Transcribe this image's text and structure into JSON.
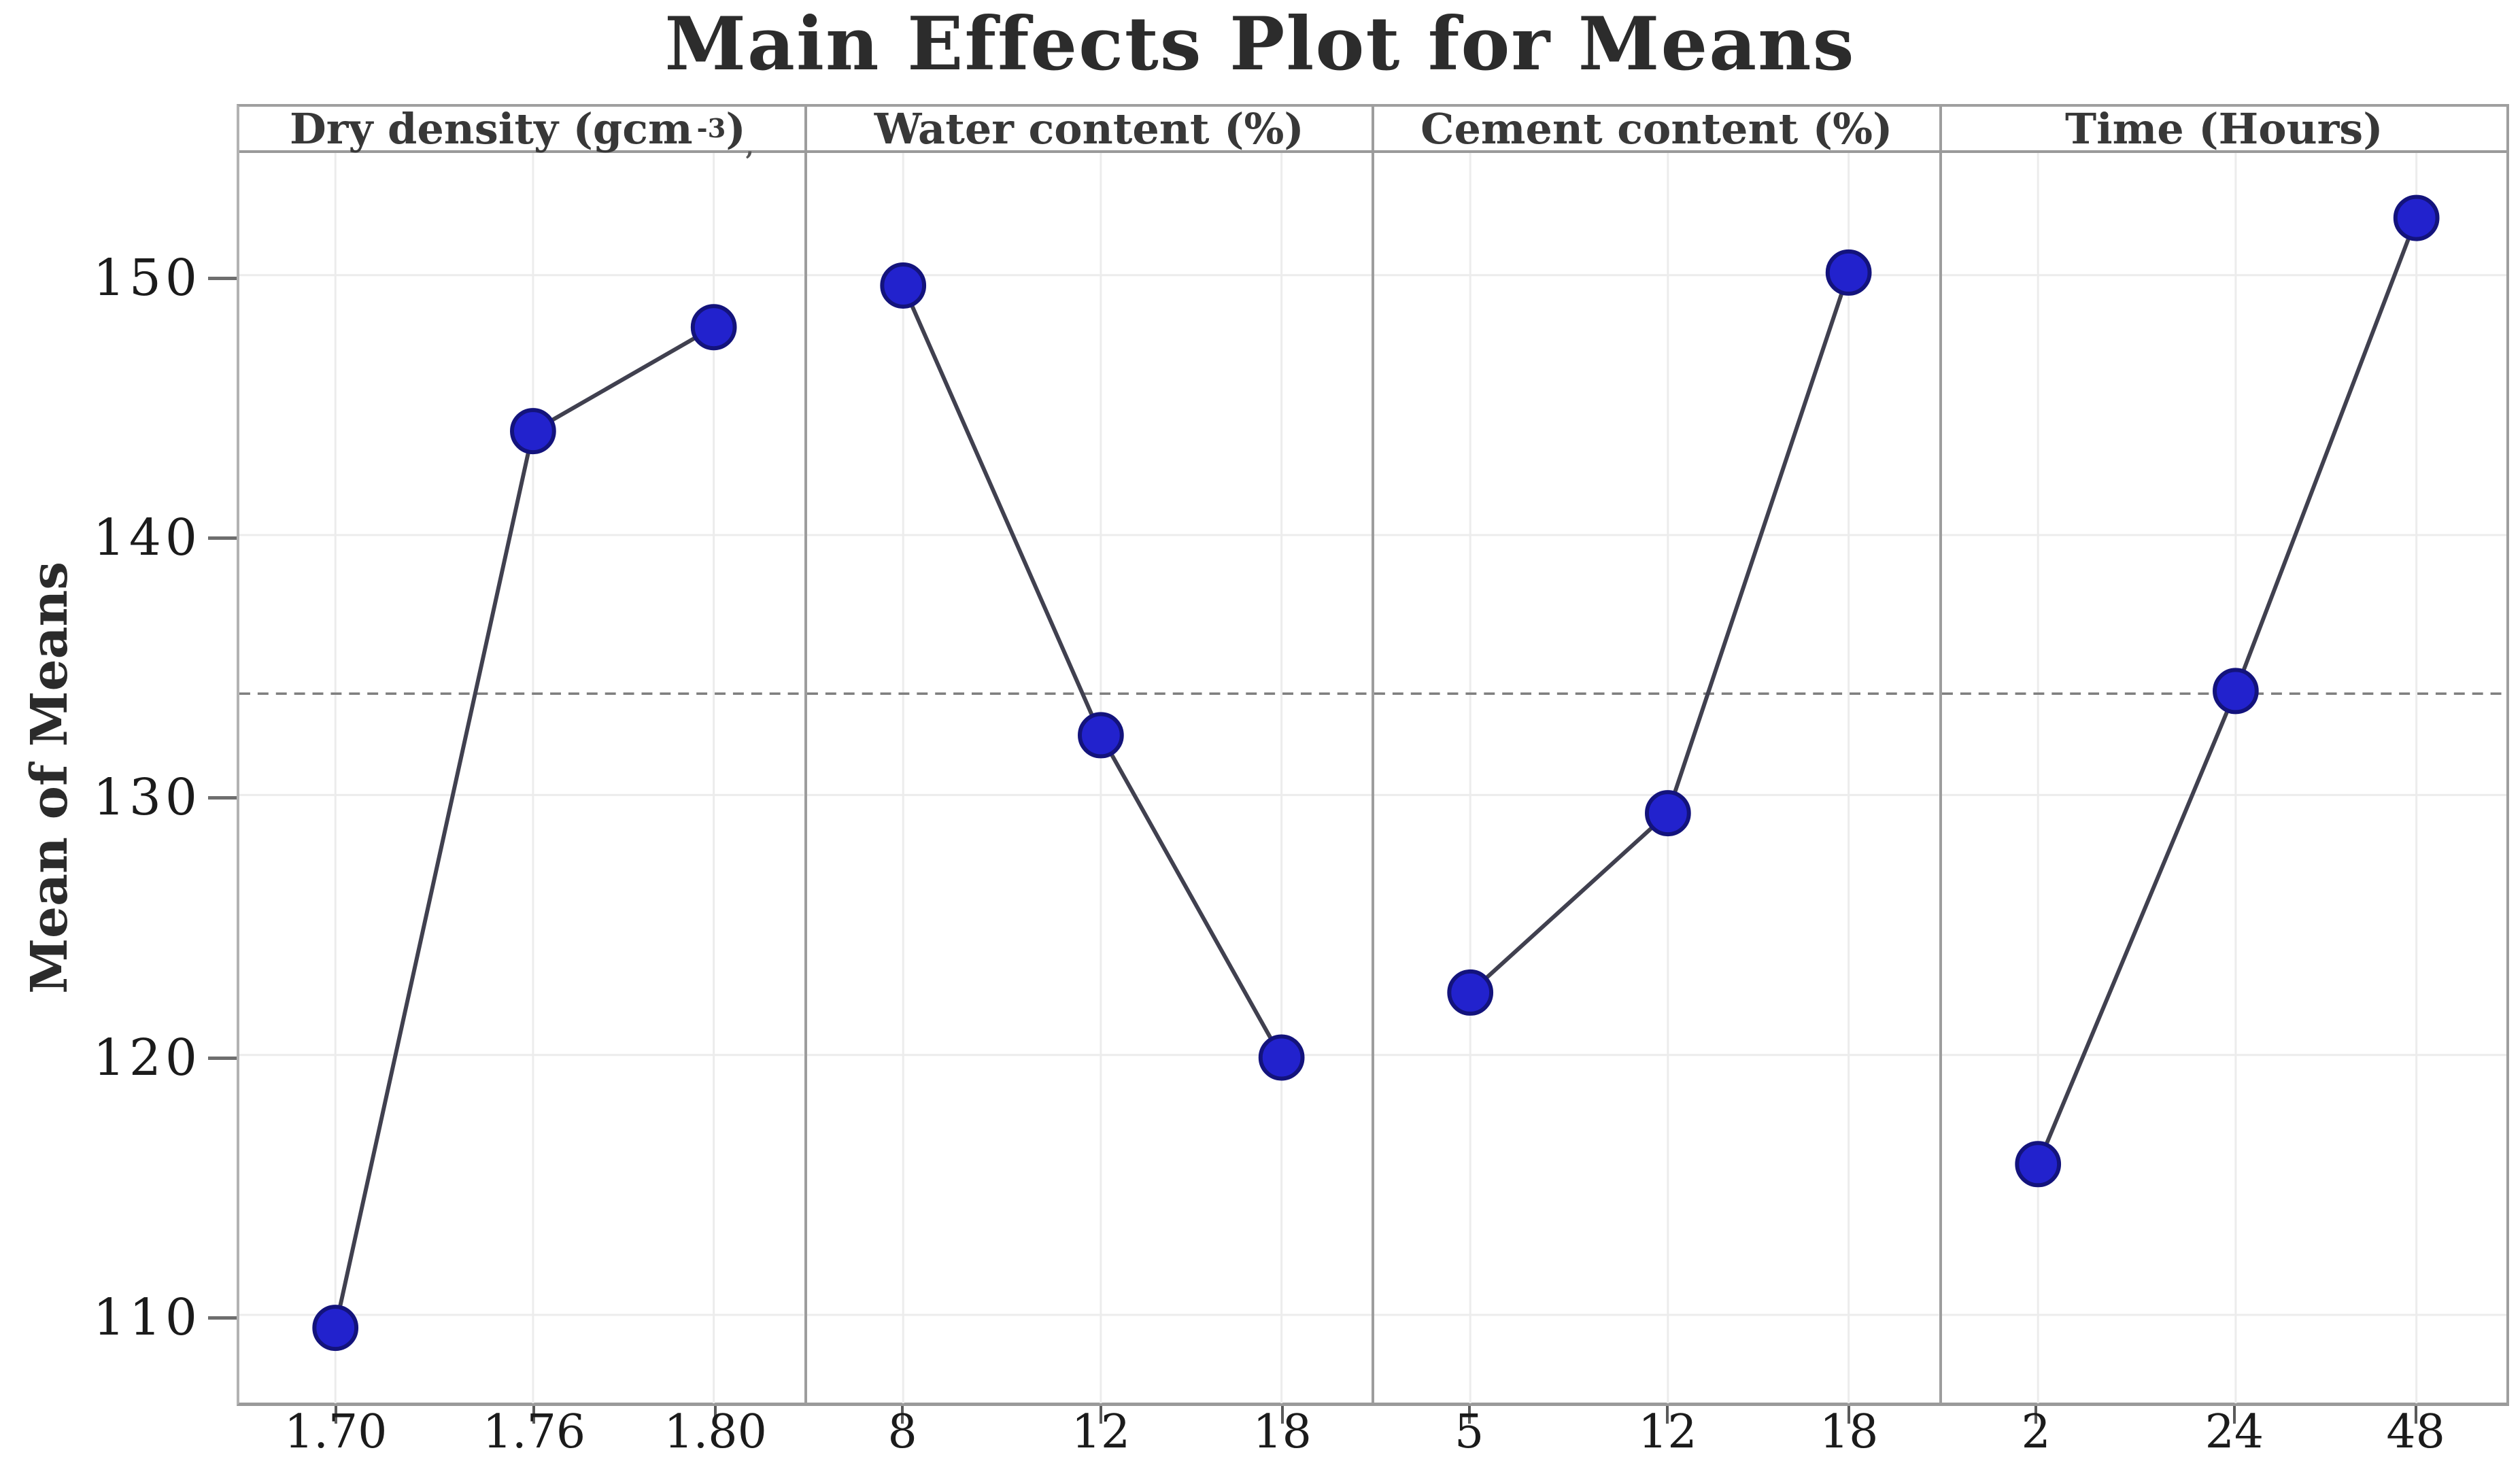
{
  "title": "Main Effects Plot for Means",
  "colors": {
    "title_text": "#2c2c2c",
    "header_text": "#383838",
    "tick_text": "#1b1b1b",
    "marker_fill": "#2222cd",
    "marker_stroke": "#13137c",
    "series_line": "#40404f",
    "grand_mean_line": "#7f7f7f",
    "gridline": "#ececec",
    "panel_border": "#9d9d9d",
    "background": "#ffffff"
  },
  "chart_data": {
    "type": "line",
    "title": "Main Effects Plot for Means",
    "ylabel": "Mean of Means",
    "ylim": [
      106.6,
      154.7
    ],
    "yticks": [
      110,
      120,
      130,
      140,
      150
    ],
    "grand_mean": 133.9,
    "grid": true,
    "legend_position": "none",
    "panels": [
      {
        "label": "Dry density (gcm⁻³)",
        "label_prefix": "Dry density (gcm",
        "label_sup": "-3",
        "label_close": ")",
        "label_trail": ",",
        "categories": [
          "1.70",
          "1.76",
          "1.80"
        ],
        "values": [
          109.5,
          144.0,
          148.0
        ]
      },
      {
        "label": "Water content (%)",
        "categories": [
          "8",
          "12",
          "18"
        ],
        "values": [
          149.6,
          132.3,
          119.9
        ]
      },
      {
        "label": "Cement content (%)",
        "categories": [
          "5",
          "12",
          "18"
        ],
        "values": [
          122.4,
          129.3,
          150.1
        ]
      },
      {
        "label": "Time (Hours)",
        "categories": [
          "2",
          "24",
          "48"
        ],
        "values": [
          115.8,
          134.0,
          152.2
        ]
      }
    ]
  }
}
